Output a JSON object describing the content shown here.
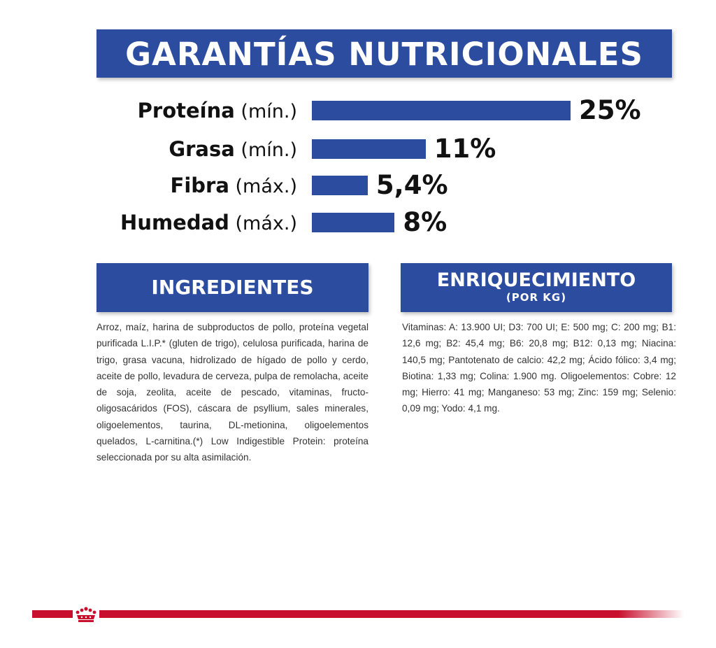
{
  "header": {
    "title": "GARANTÍAS NUTRICIONALES"
  },
  "chart_data": {
    "type": "bar",
    "orientation": "horizontal",
    "title": "GARANTÍAS NUTRICIONALES",
    "unit": "%",
    "categories": [
      "Proteína",
      "Grasa",
      "Fibra",
      "Humedad"
    ],
    "qualifiers": [
      "(mín.)",
      "(mín.)",
      "(máx.)",
      "(máx.)"
    ],
    "values": [
      25,
      11,
      5.4,
      8
    ],
    "value_labels": [
      "25%",
      "11%",
      "5,4%",
      "8%"
    ],
    "grid": false,
    "legend": "none",
    "bar_color": "#2c4c9f"
  },
  "ingredients": {
    "title": "INGREDIENTES",
    "text": "Arroz, maíz, harina de subproductos de pollo, proteína vegetal purificada L.I.P.* (gluten de trigo), celulosa purificada, harina de trigo, grasa vacuna, hidrolizado de hígado de pollo y cerdo, aceite de pollo, levadura de cerveza, pulpa de remolacha, aceite de soja, zeolita, aceite de pescado, vitaminas, fructo-oligosacáridos (FOS), cáscara de psyllium, sales minerales, oligoelementos, taurina, DL-metionina, oligoelementos quelados, L-carnitina.(*) Low Indigestible Protein: proteína seleccionada por su alta asimilación."
  },
  "enrichment": {
    "title": "ENRIQUECIMIENTO",
    "subtitle": "(POR KG)",
    "text": "Vitaminas: A: 13.900 UI; D3: 700 UI; E: 500 mg; C: 200 mg; B1: 12,6 mg; B2: 45,4 mg; B6: 20,8 mg; B12: 0,13 mg; Niacina: 140,5 mg; Pantotenato de calcio: 42,2 mg; Ácido fólico: 3,4 mg; Biotina: 1,33 mg; Colina: 1.900 mg. Oligoelementos: Cobre: 12 mg; Hierro: 41 mg; Manganeso: 53 mg; Zinc: 159 mg; Selenio: 0,09 mg; Yodo: 4,1 mg."
  },
  "footer": {
    "stripe_color": "#c8102e",
    "logo_icon": "royal-crown-icon"
  }
}
